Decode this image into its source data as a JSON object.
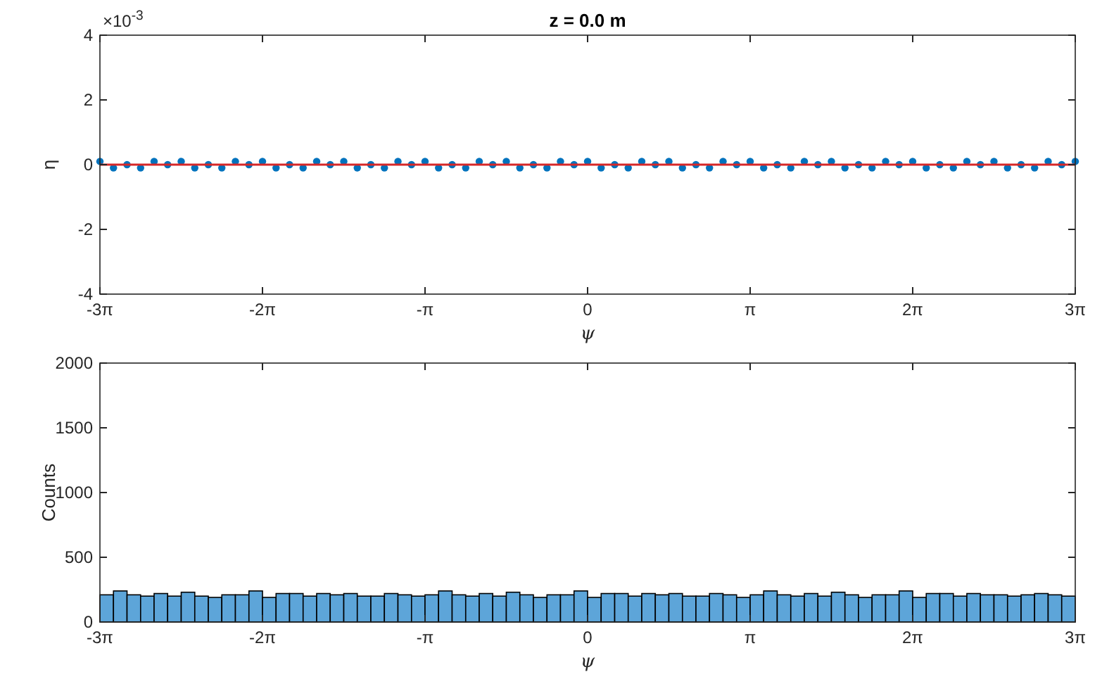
{
  "chart_data": [
    {
      "type": "scatter",
      "title": "z = 0.0 m",
      "xlabel": "ψ",
      "ylabel": "η",
      "annotations": [
        "×10$^{-3}$"
      ],
      "marker": "circle",
      "grid": false,
      "xlim": [
        -9.425,
        9.425
      ],
      "xticks": [
        {
          "value": -9.425,
          "label": "-3π"
        },
        {
          "value": -6.283,
          "label": "-2π"
        },
        {
          "value": -3.142,
          "label": "-π"
        },
        0,
        {
          "value": 3.142,
          "label": "π"
        },
        {
          "value": 6.283,
          "label": "2π"
        },
        {
          "value": 9.425,
          "label": "3π"
        }
      ],
      "ylim": [
        -4,
        4
      ],
      "yticks": [
        -4,
        -2,
        0,
        2,
        4
      ],
      "ref_lines": [
        {
          "axis": "y",
          "value": 0,
          "color": "#d62728"
        }
      ],
      "series": [
        {
          "color": "#0072bd",
          "x": [
            -9.425,
            -9.163,
            -8.901,
            -8.639,
            -8.378,
            -8.116,
            -7.854,
            -7.592,
            -7.33,
            -7.069,
            -6.807,
            -6.545,
            -6.283,
            -6.021,
            -5.76,
            -5.498,
            -5.236,
            -4.974,
            -4.712,
            -4.451,
            -4.189,
            -3.927,
            -3.665,
            -3.403,
            -3.142,
            -2.88,
            -2.618,
            -2.356,
            -2.094,
            -1.833,
            -1.571,
            -1.309,
            -1.047,
            -0.785,
            -0.524,
            -0.262,
            0,
            0.262,
            0.524,
            0.785,
            1.047,
            1.309,
            1.571,
            1.833,
            2.094,
            2.356,
            2.618,
            2.88,
            3.142,
            3.403,
            3.665,
            3.927,
            4.189,
            4.451,
            4.712,
            4.974,
            5.236,
            5.498,
            5.76,
            6.021,
            6.283,
            6.545,
            6.807,
            7.069,
            7.33,
            7.592,
            7.854,
            8.116,
            8.378,
            8.639,
            8.901,
            9.163,
            9.425
          ],
          "values": [
            0.1,
            -0.1,
            0,
            -0.1,
            0.1,
            0,
            0.1,
            -0.1,
            0,
            -0.1,
            0.1,
            0,
            0.1,
            -0.1,
            0,
            -0.1,
            0.1,
            0,
            0.1,
            -0.1,
            0,
            -0.1,
            0.1,
            0,
            0.1,
            -0.1,
            0,
            -0.1,
            0.1,
            0,
            0.1,
            -0.1,
            0,
            -0.1,
            0.1,
            0,
            0.1,
            -0.1,
            0,
            -0.1,
            0.1,
            0,
            0.1,
            -0.1,
            0,
            -0.1,
            0.1,
            0,
            0.1,
            -0.1,
            0,
            -0.1,
            0.1,
            0,
            0.1,
            -0.1,
            0,
            -0.1,
            0.1,
            0,
            0.1,
            -0.1,
            0,
            -0.1,
            0.1,
            0,
            0.1,
            -0.1,
            0,
            -0.1,
            0.1,
            0,
            0.1
          ]
        }
      ]
    },
    {
      "type": "histogram",
      "xlabel": "ψ",
      "ylabel": "Counts",
      "grid": false,
      "color": "#5da5d9",
      "xlim": [
        -9.425,
        9.425
      ],
      "xticks": [
        {
          "value": -9.425,
          "label": "-3π"
        },
        {
          "value": -6.283,
          "label": "-2π"
        },
        {
          "value": -3.142,
          "label": "-π"
        },
        0,
        {
          "value": 3.142,
          "label": "π"
        },
        {
          "value": 6.283,
          "label": "2π"
        },
        {
          "value": 9.425,
          "label": "3π"
        }
      ],
      "ylim": [
        0,
        2000
      ],
      "yticks": [
        0,
        500,
        1000,
        1500,
        2000
      ],
      "bins": [
        -9.425,
        -9.163,
        -8.901,
        -8.639,
        -8.378,
        -8.116,
        -7.854,
        -7.592,
        -7.33,
        -7.069,
        -6.807,
        -6.545,
        -6.283,
        -6.021,
        -5.76,
        -5.498,
        -5.236,
        -4.974,
        -4.712,
        -4.451,
        -4.189,
        -3.927,
        -3.665,
        -3.403,
        -3.142,
        -2.88,
        -2.618,
        -2.356,
        -2.094,
        -1.833,
        -1.571,
        -1.309,
        -1.047,
        -0.785,
        -0.524,
        -0.262,
        0,
        0.262,
        0.524,
        0.785,
        1.047,
        1.309,
        1.571,
        1.833,
        2.094,
        2.356,
        2.618,
        2.88,
        3.142,
        3.403,
        3.665,
        3.927,
        4.189,
        4.451,
        4.712,
        4.974,
        5.236,
        5.498,
        5.76,
        6.021,
        6.283,
        6.545,
        6.807,
        7.069,
        7.33,
        7.592,
        7.854,
        8.116,
        8.378,
        8.639,
        8.901,
        9.163,
        9.425
      ],
      "values": [
        210,
        240,
        210,
        200,
        220,
        200,
        230,
        200,
        190,
        210,
        210,
        240,
        190,
        220,
        220,
        200,
        220,
        210,
        220,
        200,
        200,
        220,
        210,
        200,
        210,
        240,
        210,
        200,
        220,
        200,
        230,
        210,
        190,
        210,
        210,
        240,
        190,
        220,
        220,
        200,
        220,
        210,
        220,
        200,
        200,
        220,
        210,
        190,
        210,
        240,
        210,
        200,
        220,
        200,
        230,
        210,
        190,
        210,
        210,
        240,
        190,
        220,
        220,
        200,
        220,
        210,
        210,
        200,
        210,
        220,
        210,
        200
      ]
    }
  ]
}
